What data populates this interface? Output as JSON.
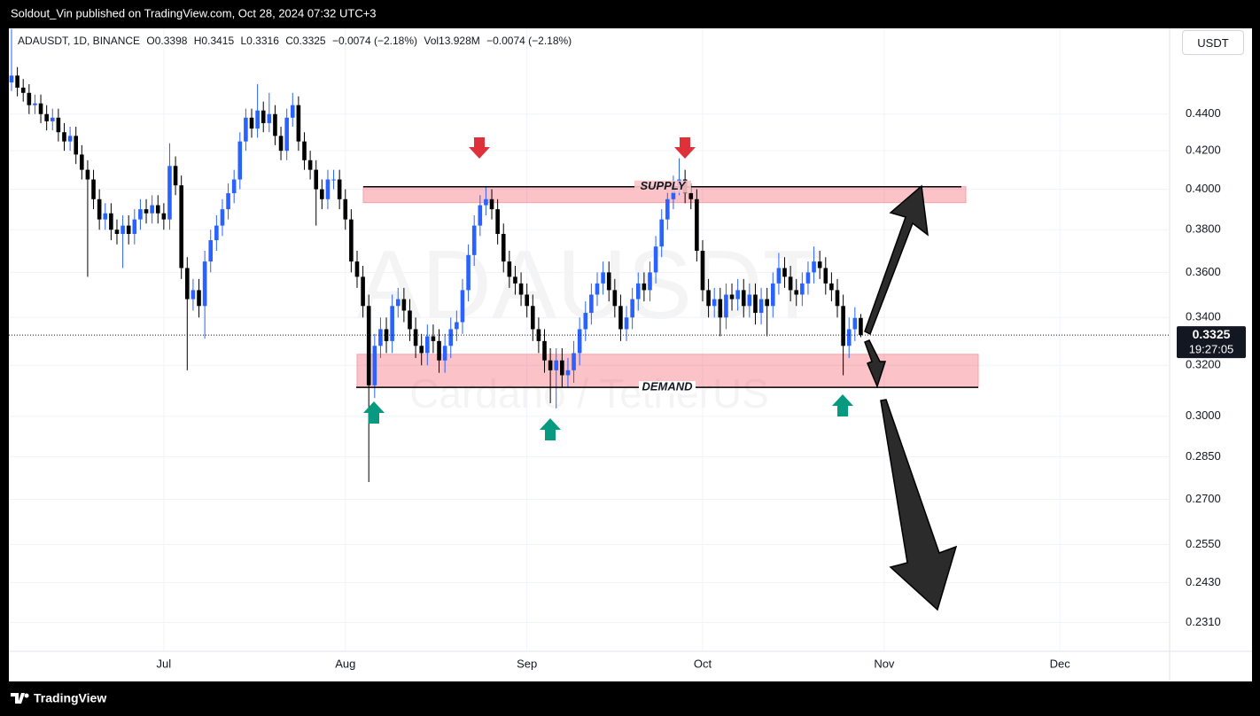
{
  "header": {
    "publisher_line": "Soldout_Vin published on TradingView.com, Oct 28, 2024 07:32 UTC+3"
  },
  "footer": {
    "brand": "TradingView"
  },
  "chart_data": {
    "type": "candlestick",
    "legend": {
      "symbol": "ADAUSDT, 1D, BINANCE",
      "open": "O0.3398",
      "high": "H0.3415",
      "low": "L0.3316",
      "close": "C0.3325",
      "change": "−0.0074 (−2.18%)",
      "volume": "Vol13.928M",
      "volume_change": "−0.0074 (−2.18%)"
    },
    "currency": "USDT",
    "watermark": {
      "symbol": "ADAUSDT",
      "description": "Cardano / TetherUS"
    },
    "y_scale": "log",
    "grid": true,
    "up_color": "#2962ff",
    "down_color": "#000000",
    "ylim": [
      0.2227,
      0.4905
    ],
    "yticks": [
      {
        "value": 0.44,
        "label": "0.4400"
      },
      {
        "value": 0.42,
        "label": "0.4200"
      },
      {
        "value": 0.4,
        "label": "0.4000"
      },
      {
        "value": 0.38,
        "label": "0.3800"
      },
      {
        "value": 0.36,
        "label": "0.3600"
      },
      {
        "value": 0.34,
        "label": "0.3400"
      },
      {
        "value": 0.32,
        "label": "0.3200"
      },
      {
        "value": 0.3,
        "label": "0.3000"
      },
      {
        "value": 0.285,
        "label": "0.2850"
      },
      {
        "value": 0.27,
        "label": "0.2700"
      },
      {
        "value": 0.255,
        "label": "0.2550"
      },
      {
        "value": 0.243,
        "label": "0.2430"
      },
      {
        "value": 0.231,
        "label": "0.2310"
      }
    ],
    "last_price": {
      "value": 0.3325,
      "label": "0.3325"
    },
    "countdown": "19:27:05",
    "zones": [
      {
        "label": "SUPPLY",
        "top": 0.4013,
        "bottom": 0.3933
      },
      {
        "label": "DEMAND",
        "top": 0.3245,
        "bottom": 0.3112
      }
    ],
    "categories": [
      null,
      null,
      null,
      null,
      null,
      null,
      null,
      null,
      null,
      null,
      null,
      null,
      null,
      null,
      null,
      null,
      null,
      null,
      null,
      null,
      null,
      null,
      null,
      null,
      null,
      null,
      "Jul",
      null,
      null,
      null,
      null,
      null,
      null,
      null,
      null,
      null,
      null,
      null,
      null,
      null,
      null,
      null,
      null,
      null,
      null,
      null,
      null,
      null,
      null,
      null,
      null,
      null,
      null,
      null,
      null,
      null,
      null,
      "Aug",
      null,
      null,
      null,
      null,
      null,
      null,
      null,
      null,
      null,
      null,
      null,
      null,
      null,
      null,
      null,
      null,
      null,
      null,
      null,
      null,
      null,
      null,
      null,
      null,
      null,
      null,
      null,
      null,
      null,
      null,
      "Sep",
      null,
      null,
      null,
      null,
      null,
      null,
      null,
      null,
      null,
      null,
      null,
      null,
      null,
      null,
      null,
      null,
      null,
      null,
      null,
      null,
      null,
      null,
      null,
      null,
      null,
      null,
      null,
      null,
      null,
      "Oct",
      null,
      null,
      null,
      null,
      null,
      null,
      null,
      null,
      null,
      null,
      null,
      null,
      null,
      null,
      null,
      null,
      null,
      null,
      null,
      null,
      null,
      null,
      null,
      null,
      null,
      null,
      null,
      null,
      null,
      null,
      "Nov",
      null,
      null,
      null,
      null,
      null,
      null,
      null,
      null,
      null,
      null,
      null,
      null,
      null,
      null,
      null,
      null,
      null,
      null,
      null,
      null,
      null,
      null,
      null,
      null,
      null,
      null,
      null,
      null,
      null,
      "Dec"
    ],
    "open": [
      0.458,
      0.462,
      0.455,
      0.452,
      0.445,
      0.446,
      0.44,
      0.436,
      0.438,
      0.43,
      0.425,
      0.428,
      0.418,
      0.41,
      0.405,
      0.395,
      0.385,
      0.388,
      0.38,
      0.378,
      0.382,
      0.378,
      0.385,
      0.39,
      0.388,
      0.392,
      0.388,
      0.385,
      0.412,
      0.402,
      0.362,
      0.348,
      0.352,
      0.345,
      0.365,
      0.375,
      0.382,
      0.39,
      0.398,
      0.405,
      0.425,
      0.438,
      0.432,
      0.442,
      0.435,
      0.44,
      0.428,
      0.42,
      0.438,
      0.445,
      0.425,
      0.415,
      0.41,
      0.4,
      0.395,
      0.405,
      0.405,
      0.395,
      0.385,
      0.365,
      0.358,
      0.345,
      0.312,
      0.328,
      0.335,
      0.33,
      0.345,
      0.348,
      0.343,
      0.335,
      0.328,
      0.325,
      0.332,
      0.33,
      0.322,
      0.328,
      0.335,
      0.338,
      0.352,
      0.368,
      0.382,
      0.392,
      0.395,
      0.39,
      0.378,
      0.365,
      0.358,
      0.355,
      0.35,
      0.345,
      0.335,
      0.33,
      0.322,
      0.318,
      0.322,
      0.316,
      0.318,
      0.325,
      0.335,
      0.342,
      0.35,
      0.355,
      0.36,
      0.352,
      0.345,
      0.335,
      0.34,
      0.348,
      0.355,
      0.352,
      0.36,
      0.372,
      0.385,
      0.395,
      0.402,
      0.405,
      0.398,
      0.395,
      0.37,
      0.352,
      0.345,
      0.348,
      0.34,
      0.35,
      0.348,
      0.352,
      0.345,
      0.35,
      0.342,
      0.348,
      0.345,
      0.355,
      0.362,
      0.358,
      0.352,
      0.35,
      0.355,
      0.36,
      0.365,
      0.362,
      0.355,
      0.352,
      0.345,
      0.328,
      0.335,
      0.3398,
      null,
      null,
      null,
      null,
      null,
      null,
      null,
      null,
      null,
      null,
      null,
      null,
      null,
      null,
      null,
      null,
      null,
      null,
      null,
      null,
      null,
      null,
      null,
      null,
      null,
      null,
      null,
      null,
      null,
      null,
      null,
      null,
      null,
      null
    ],
    "high": [
      0.49,
      0.467,
      0.46,
      0.457,
      0.451,
      0.451,
      0.445,
      0.443,
      0.443,
      0.435,
      0.433,
      0.433,
      0.423,
      0.415,
      0.41,
      0.4,
      0.393,
      0.393,
      0.385,
      0.387,
      0.387,
      0.39,
      0.395,
      0.395,
      0.397,
      0.397,
      0.393,
      0.424,
      0.417,
      0.407,
      0.367,
      0.357,
      0.357,
      0.37,
      0.38,
      0.387,
      0.395,
      0.403,
      0.41,
      0.43,
      0.443,
      0.443,
      0.457,
      0.447,
      0.452,
      0.445,
      0.433,
      0.443,
      0.452,
      0.45,
      0.43,
      0.42,
      0.415,
      0.405,
      0.41,
      0.41,
      0.41,
      0.4,
      0.39,
      0.37,
      0.363,
      0.35,
      0.333,
      0.34,
      0.34,
      0.35,
      0.353,
      0.353,
      0.348,
      0.34,
      0.333,
      0.337,
      0.337,
      0.335,
      0.333,
      0.34,
      0.343,
      0.357,
      0.373,
      0.387,
      0.397,
      0.401,
      0.4,
      0.395,
      0.383,
      0.37,
      0.363,
      0.36,
      0.355,
      0.35,
      0.34,
      0.335,
      0.327,
      0.327,
      0.327,
      0.323,
      0.33,
      0.34,
      0.347,
      0.355,
      0.36,
      0.365,
      0.365,
      0.357,
      0.35,
      0.345,
      0.353,
      0.36,
      0.36,
      0.365,
      0.377,
      0.39,
      0.4,
      0.407,
      0.416,
      0.41,
      0.403,
      0.4,
      0.375,
      0.357,
      0.353,
      0.353,
      0.355,
      0.355,
      0.357,
      0.357,
      0.355,
      0.355,
      0.353,
      0.353,
      0.36,
      0.369,
      0.367,
      0.363,
      0.357,
      0.36,
      0.365,
      0.372,
      0.37,
      0.367,
      0.36,
      0.357,
      0.35,
      0.34,
      0.3445,
      0.3415,
      null,
      null,
      null,
      null,
      null,
      null,
      null,
      null,
      null,
      null,
      null,
      null,
      null,
      null,
      null,
      null,
      null,
      null,
      null,
      null,
      null,
      null,
      null,
      null,
      null,
      null,
      null,
      null,
      null,
      null,
      null,
      null,
      null,
      null
    ],
    "low": [
      0.453,
      0.45,
      0.447,
      0.44,
      0.44,
      0.435,
      0.431,
      0.431,
      0.425,
      0.42,
      0.42,
      0.413,
      0.405,
      0.358,
      0.39,
      0.38,
      0.38,
      0.375,
      0.373,
      0.362,
      0.373,
      0.373,
      0.38,
      0.383,
      0.383,
      0.383,
      0.38,
      0.38,
      0.397,
      0.357,
      0.318,
      0.343,
      0.34,
      0.331,
      0.36,
      0.37,
      0.377,
      0.385,
      0.393,
      0.4,
      0.42,
      0.427,
      0.427,
      0.43,
      0.43,
      0.423,
      0.415,
      0.415,
      0.433,
      0.42,
      0.41,
      0.405,
      0.382,
      0.39,
      0.39,
      0.4,
      0.39,
      0.38,
      0.36,
      0.353,
      0.34,
      0.276,
      0.307,
      0.323,
      0.325,
      0.325,
      0.34,
      0.338,
      0.33,
      0.323,
      0.32,
      0.32,
      0.325,
      0.317,
      0.317,
      0.323,
      0.33,
      0.333,
      0.347,
      0.363,
      0.377,
      0.387,
      0.385,
      0.373,
      0.36,
      0.353,
      0.35,
      0.345,
      0.34,
      0.33,
      0.325,
      0.317,
      0.305,
      0.303,
      0.311,
      0.311,
      0.313,
      0.32,
      0.33,
      0.337,
      0.345,
      0.35,
      0.347,
      0.34,
      0.33,
      0.33,
      0.335,
      0.343,
      0.347,
      0.347,
      0.355,
      0.367,
      0.38,
      0.39,
      0.397,
      0.393,
      0.39,
      0.365,
      0.347,
      0.34,
      0.34,
      0.332,
      0.335,
      0.343,
      0.343,
      0.34,
      0.34,
      0.337,
      0.337,
      0.332,
      0.34,
      0.35,
      0.353,
      0.347,
      0.345,
      0.345,
      0.35,
      0.355,
      0.357,
      0.35,
      0.347,
      0.34,
      0.316,
      0.323,
      0.33,
      0.3316,
      null,
      null,
      null,
      null,
      null,
      null,
      null,
      null,
      null,
      null,
      null,
      null,
      null,
      null,
      null,
      null,
      null,
      null,
      null,
      null,
      null,
      null,
      null,
      null,
      null,
      null,
      null,
      null,
      null,
      null,
      null,
      null,
      null,
      null
    ],
    "close": [
      0.462,
      0.455,
      0.452,
      0.445,
      0.446,
      0.44,
      0.436,
      0.438,
      0.43,
      0.425,
      0.428,
      0.418,
      0.41,
      0.405,
      0.395,
      0.385,
      0.388,
      0.38,
      0.378,
      0.382,
      0.378,
      0.385,
      0.39,
      0.388,
      0.392,
      0.388,
      0.385,
      0.412,
      0.402,
      0.362,
      0.348,
      0.352,
      0.345,
      0.365,
      0.375,
      0.382,
      0.39,
      0.398,
      0.405,
      0.425,
      0.438,
      0.432,
      0.442,
      0.435,
      0.44,
      0.428,
      0.42,
      0.438,
      0.445,
      0.425,
      0.415,
      0.41,
      0.4,
      0.395,
      0.405,
      0.405,
      0.395,
      0.385,
      0.365,
      0.358,
      0.345,
      0.312,
      0.328,
      0.335,
      0.33,
      0.345,
      0.348,
      0.343,
      0.335,
      0.328,
      0.325,
      0.332,
      0.33,
      0.322,
      0.328,
      0.335,
      0.338,
      0.352,
      0.368,
      0.382,
      0.392,
      0.395,
      0.39,
      0.378,
      0.365,
      0.358,
      0.355,
      0.35,
      0.345,
      0.335,
      0.33,
      0.322,
      0.318,
      0.322,
      0.316,
      0.318,
      0.325,
      0.335,
      0.342,
      0.35,
      0.355,
      0.36,
      0.352,
      0.345,
      0.335,
      0.34,
      0.348,
      0.355,
      0.352,
      0.36,
      0.372,
      0.385,
      0.395,
      0.402,
      0.405,
      0.398,
      0.395,
      0.37,
      0.352,
      0.345,
      0.348,
      0.34,
      0.35,
      0.348,
      0.352,
      0.345,
      0.35,
      0.342,
      0.348,
      0.345,
      0.355,
      0.362,
      0.358,
      0.352,
      0.35,
      0.355,
      0.36,
      0.365,
      0.362,
      0.355,
      0.352,
      0.345,
      0.328,
      0.335,
      0.3398,
      0.3325,
      null,
      null,
      null,
      null,
      null,
      null,
      null,
      null,
      null,
      null,
      null,
      null,
      null,
      null,
      null,
      null,
      null,
      null,
      null,
      null,
      null,
      null,
      null,
      null,
      null,
      null,
      null,
      null,
      null,
      null,
      null,
      null,
      null,
      null
    ]
  }
}
